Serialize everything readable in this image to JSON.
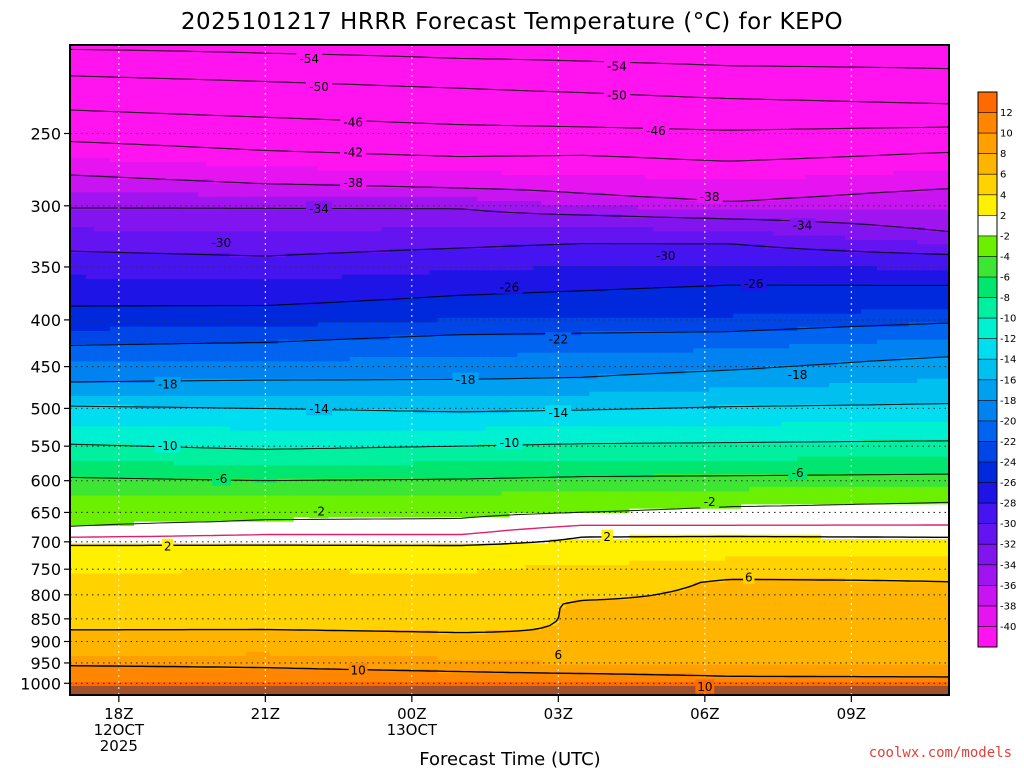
{
  "chart_data": {
    "type": "heatmap",
    "title": "2025101217 HRRR Forecast Temperature (°C) for KEPO",
    "xlabel": "Forecast Time (UTC)",
    "ylabel": "",
    "x_ticks": [
      {
        "hour": 0,
        "lines": [
          "18Z",
          "12OCT",
          "2025"
        ]
      },
      {
        "hour": 3,
        "lines": [
          "21Z"
        ]
      },
      {
        "hour": 6,
        "lines": [
          "00Z",
          "13OCT"
        ]
      },
      {
        "hour": 9,
        "lines": [
          "03Z"
        ]
      },
      {
        "hour": 12,
        "lines": [
          "06Z"
        ]
      },
      {
        "hour": 15,
        "lines": [
          "09Z"
        ]
      }
    ],
    "xlim": [
      -1,
      17
    ],
    "y_ticks": [
      250,
      300,
      350,
      400,
      450,
      500,
      550,
      600,
      650,
      700,
      750,
      800,
      850,
      900,
      950,
      1000
    ],
    "ylim": [
      1030,
      200
    ],
    "y_scale": "log-pressure",
    "colorbar": {
      "labels": [
        "12",
        "10",
        "8",
        "6",
        "4",
        "2",
        "-2",
        "-4",
        "-6",
        "-8",
        "-10",
        "-12",
        "-14",
        "-16",
        "-18",
        "-20",
        "-22",
        "-24",
        "-26",
        "-28",
        "-30",
        "-32",
        "-34",
        "-36",
        "-38",
        "-40"
      ],
      "bins": [
        {
          "lo": 12,
          "hi": 14,
          "color": "#ff6a00"
        },
        {
          "lo": 10,
          "hi": 12,
          "color": "#ff8600"
        },
        {
          "lo": 8,
          "hi": 10,
          "color": "#ff9f00"
        },
        {
          "lo": 6,
          "hi": 8,
          "color": "#ffb400"
        },
        {
          "lo": 4,
          "hi": 6,
          "color": "#ffd200"
        },
        {
          "lo": 2,
          "hi": 4,
          "color": "#fff000"
        },
        {
          "lo": -2,
          "hi": 2,
          "color": "#ffffff"
        },
        {
          "lo": -4,
          "hi": -2,
          "color": "#6af000"
        },
        {
          "lo": -6,
          "hi": -4,
          "color": "#3ce632"
        },
        {
          "lo": -8,
          "hi": -6,
          "color": "#00e66e"
        },
        {
          "lo": -10,
          "hi": -8,
          "color": "#00f0a0"
        },
        {
          "lo": -12,
          "hi": -10,
          "color": "#00f0d2"
        },
        {
          "lo": -14,
          "hi": -12,
          "color": "#00dcf0"
        },
        {
          "lo": -16,
          "hi": -14,
          "color": "#00c0f0"
        },
        {
          "lo": -18,
          "hi": -16,
          "color": "#00a0f0"
        },
        {
          "lo": -20,
          "hi": -18,
          "color": "#0082f0"
        },
        {
          "lo": -22,
          "hi": -20,
          "color": "#0064f0"
        },
        {
          "lo": -24,
          "hi": -22,
          "color": "#0046e6"
        },
        {
          "lo": -26,
          "hi": -24,
          "color": "#0028dc"
        },
        {
          "lo": -28,
          "hi": -26,
          "color": "#1e14e6"
        },
        {
          "lo": -30,
          "hi": -28,
          "color": "#4614f0"
        },
        {
          "lo": -32,
          "hi": -30,
          "color": "#6414f0"
        },
        {
          "lo": -34,
          "hi": -32,
          "color": "#8214f0"
        },
        {
          "lo": -36,
          "hi": -34,
          "color": "#a014f0"
        },
        {
          "lo": -38,
          "hi": -36,
          "color": "#c814f0"
        },
        {
          "lo": -40,
          "hi": -38,
          "color": "#e614f0"
        },
        {
          "lo": -60,
          "hi": -40,
          "color": "#ff14f0"
        }
      ],
      "top_color": "#ff6a00",
      "bottom_color": "#ff00ff"
    },
    "grid": true,
    "surface_color": "#a0522d",
    "profiles": [
      {
        "hour": -1,
        "points": [
          [
            1010,
            14
          ],
          [
            990,
            11.2
          ],
          [
            970,
            10.8
          ],
          [
            950,
            9.6
          ],
          [
            930,
            7.8
          ],
          [
            900,
            6.9
          ],
          [
            880,
            6.2
          ],
          [
            850,
            5.2
          ],
          [
            800,
            4.3
          ],
          [
            750,
            3.9
          ],
          [
            720,
            3.5
          ],
          [
            706,
            2.0
          ],
          [
            700,
            1.2
          ],
          [
            680,
            -1.8
          ],
          [
            660,
            -2.4
          ],
          [
            645,
            -2.2
          ],
          [
            600,
            -5.6
          ],
          [
            550,
            -9.8
          ],
          [
            500,
            -13.6
          ],
          [
            470,
            -17.8
          ],
          [
            430,
            -21.6
          ],
          [
            400,
            -25.2
          ],
          [
            370,
            -27.0
          ],
          [
            330,
            -30.6
          ],
          [
            300,
            -34.2
          ],
          [
            280,
            -37.6
          ],
          [
            260,
            -41.0
          ],
          [
            240,
            -45.2
          ],
          [
            220,
            -49.0
          ],
          [
            205,
            -53.0
          ],
          [
            200,
            -54.8
          ]
        ]
      },
      {
        "hour": 3,
        "points": [
          [
            1010,
            14
          ],
          [
            990,
            11.5
          ],
          [
            965,
            10.2
          ],
          [
            950,
            9.4
          ],
          [
            930,
            8.0
          ],
          [
            900,
            7.0
          ],
          [
            880,
            6.2
          ],
          [
            850,
            5.3
          ],
          [
            800,
            4.5
          ],
          [
            750,
            4.0
          ],
          [
            720,
            3.2
          ],
          [
            705,
            2.0
          ],
          [
            700,
            1.3
          ],
          [
            670,
            -1.8
          ],
          [
            650,
            -2.3
          ],
          [
            640,
            -2.5
          ],
          [
            600,
            -6.0
          ],
          [
            550,
            -10.4
          ],
          [
            500,
            -14.0
          ],
          [
            465,
            -18.1
          ],
          [
            425,
            -21.8
          ],
          [
            400,
            -24.8
          ],
          [
            372,
            -27.2
          ],
          [
            330,
            -31.0
          ],
          [
            300,
            -34.2
          ],
          [
            285,
            -37.8
          ],
          [
            262,
            -41.8
          ],
          [
            240,
            -46.0
          ],
          [
            220,
            -49.8
          ],
          [
            205,
            -53.8
          ],
          [
            200,
            -55.0
          ]
        ]
      },
      {
        "hour": 7,
        "points": [
          [
            1010,
            14
          ],
          [
            990,
            11.0
          ],
          [
            970,
            10.0
          ],
          [
            950,
            8.6
          ],
          [
            930,
            7.4
          ],
          [
            900,
            6.5
          ],
          [
            880,
            6.0
          ],
          [
            850,
            5.2
          ],
          [
            800,
            4.3
          ],
          [
            750,
            3.9
          ],
          [
            720,
            2.9
          ],
          [
            705,
            2.0
          ],
          [
            700,
            1.3
          ],
          [
            670,
            -1.8
          ],
          [
            650,
            -2.2
          ],
          [
            640,
            -2.5
          ],
          [
            600,
            -5.8
          ],
          [
            550,
            -10.0
          ],
          [
            500,
            -14.4
          ],
          [
            465,
            -18.0
          ],
          [
            420,
            -21.4
          ],
          [
            395,
            -24.6
          ],
          [
            368,
            -26.6
          ],
          [
            328,
            -30.6
          ],
          [
            300,
            -34.3
          ],
          [
            288,
            -37.8
          ],
          [
            265,
            -42.0
          ],
          [
            243,
            -46.3
          ],
          [
            222,
            -50.2
          ],
          [
            207,
            -54.0
          ],
          [
            200,
            -55.2
          ]
        ]
      },
      {
        "hour": 9.5,
        "points": [
          [
            1010,
            14
          ],
          [
            990,
            11.0
          ],
          [
            970,
            9.6
          ],
          [
            950,
            7.8
          ],
          [
            935,
            6.6
          ],
          [
            920,
            6.0
          ],
          [
            900,
            6.0
          ],
          [
            880,
            6.1
          ],
          [
            850,
            6.2
          ],
          [
            820,
            6.3
          ],
          [
            800,
            5.6
          ],
          [
            750,
            4.4
          ],
          [
            720,
            3.0
          ],
          [
            690,
            2.0
          ],
          [
            680,
            1.2
          ],
          [
            660,
            -1.6
          ],
          [
            650,
            -2.0
          ],
          [
            635,
            -2.4
          ],
          [
            600,
            -5.5
          ],
          [
            550,
            -9.7
          ],
          [
            500,
            -14.2
          ],
          [
            465,
            -17.8
          ],
          [
            420,
            -21.2
          ],
          [
            395,
            -24.4
          ],
          [
            366,
            -26.4
          ],
          [
            328,
            -30.2
          ],
          [
            310,
            -33.2
          ],
          [
            295,
            -37.4
          ],
          [
            265,
            -41.8
          ],
          [
            245,
            -46.2
          ],
          [
            225,
            -50.1
          ],
          [
            208,
            -54.1
          ],
          [
            200,
            -55.3
          ]
        ]
      },
      {
        "hour": 12.5,
        "points": [
          [
            1010,
            14
          ],
          [
            990,
            10.4
          ],
          [
            975,
            9.6
          ],
          [
            950,
            7.8
          ],
          [
            930,
            6.6
          ],
          [
            910,
            6.1
          ],
          [
            890,
            6.2
          ],
          [
            850,
            6.4
          ],
          [
            800,
            6.4
          ],
          [
            770,
            6.2
          ],
          [
            760,
            5.2
          ],
          [
            720,
            3.6
          ],
          [
            690,
            2.0
          ],
          [
            680,
            1.2
          ],
          [
            660,
            -1.6
          ],
          [
            640,
            -2.0
          ],
          [
            630,
            -2.3
          ],
          [
            600,
            -5.4
          ],
          [
            550,
            -9.6
          ],
          [
            500,
            -13.8
          ],
          [
            460,
            -17.5
          ],
          [
            420,
            -21.0
          ],
          [
            395,
            -24.2
          ],
          [
            366,
            -26.0
          ],
          [
            330,
            -30.0
          ],
          [
            312,
            -33.4
          ],
          [
            297,
            -38.0
          ],
          [
            268,
            -42.0
          ],
          [
            248,
            -46.0
          ],
          [
            228,
            -50.2
          ],
          [
            210,
            -54.2
          ],
          [
            200,
            -55.4
          ]
        ]
      },
      {
        "hour": 17,
        "points": [
          [
            1010,
            14
          ],
          [
            990,
            10.4
          ],
          [
            975,
            9.4
          ],
          [
            950,
            7.7
          ],
          [
            930,
            6.6
          ],
          [
            910,
            6.1
          ],
          [
            880,
            6.0
          ],
          [
            850,
            6.2
          ],
          [
            800,
            6.1
          ],
          [
            770,
            6.0
          ],
          [
            760,
            5.6
          ],
          [
            720,
            3.5
          ],
          [
            692,
            2.0
          ],
          [
            680,
            1.3
          ],
          [
            660,
            -1.6
          ],
          [
            632,
            -2.0
          ],
          [
            622,
            -2.4
          ],
          [
            600,
            -5.2
          ],
          [
            550,
            -9.4
          ],
          [
            500,
            -13.6
          ],
          [
            445,
            -17.4
          ],
          [
            410,
            -21.0
          ],
          [
            390,
            -24.0
          ],
          [
            368,
            -25.8
          ],
          [
            340,
            -29.8
          ],
          [
            322,
            -33.8
          ],
          [
            290,
            -37.6
          ],
          [
            262,
            -42.0
          ],
          [
            246,
            -46.0
          ],
          [
            233,
            -49.8
          ],
          [
            214,
            -53.8
          ],
          [
            200,
            -55.5
          ]
        ]
      }
    ],
    "contour_levels": {
      "solid": [
        2,
        6,
        10
      ],
      "dashed": [
        -2,
        -6,
        -10,
        -14,
        -18,
        -22,
        -26,
        -30,
        -34,
        -38,
        -42,
        -46,
        -50,
        -54
      ],
      "freezing": 0
    },
    "contour_labels": [
      {
        "v": -54,
        "h": 3.9,
        "p": 207
      },
      {
        "v": -54,
        "h": 10.2,
        "p": 211
      },
      {
        "v": -50,
        "h": 4.1,
        "p": 222
      },
      {
        "v": -50,
        "h": 10.2,
        "p": 227
      },
      {
        "v": -46,
        "h": 4.8,
        "p": 243
      },
      {
        "v": -46,
        "h": 11.0,
        "p": 248
      },
      {
        "v": -42,
        "h": 4.8,
        "p": 262
      },
      {
        "v": -38,
        "h": 4.8,
        "p": 283
      },
      {
        "v": -38,
        "h": 12.1,
        "p": 293
      },
      {
        "v": -34,
        "h": 4.1,
        "p": 302
      },
      {
        "v": -34,
        "h": 14.0,
        "p": 315
      },
      {
        "v": -30,
        "h": 2.1,
        "p": 329
      },
      {
        "v": -30,
        "h": 11.2,
        "p": 340
      },
      {
        "v": -26,
        "h": 8.0,
        "p": 368
      },
      {
        "v": -26,
        "h": 13.0,
        "p": 365
      },
      {
        "v": -22,
        "h": 9.0,
        "p": 420
      },
      {
        "v": -18,
        "h": 1.0,
        "p": 470
      },
      {
        "v": -18,
        "h": 7.1,
        "p": 465
      },
      {
        "v": -18,
        "h": 13.9,
        "p": 459
      },
      {
        "v": -14,
        "h": 4.1,
        "p": 500
      },
      {
        "v": -14,
        "h": 9.0,
        "p": 505
      },
      {
        "v": -10,
        "h": 1.0,
        "p": 549
      },
      {
        "v": -10,
        "h": 8.0,
        "p": 545
      },
      {
        "v": -6,
        "h": 2.1,
        "p": 597
      },
      {
        "v": -6,
        "h": 13.9,
        "p": 588
      },
      {
        "v": -2,
        "h": 4.1,
        "p": 648
      },
      {
        "v": -2,
        "h": 12.1,
        "p": 632
      },
      {
        "v": 2,
        "h": 1.0,
        "p": 707
      },
      {
        "v": 2,
        "h": 10.0,
        "p": 691
      },
      {
        "v": 6,
        "h": 9.0,
        "p": 930
      },
      {
        "v": 6,
        "h": 12.9,
        "p": 765
      },
      {
        "v": 10,
        "h": 4.9,
        "p": 967
      },
      {
        "v": 10,
        "h": 12.0,
        "p": 1008
      }
    ],
    "credit": "coolwx.com/models"
  }
}
